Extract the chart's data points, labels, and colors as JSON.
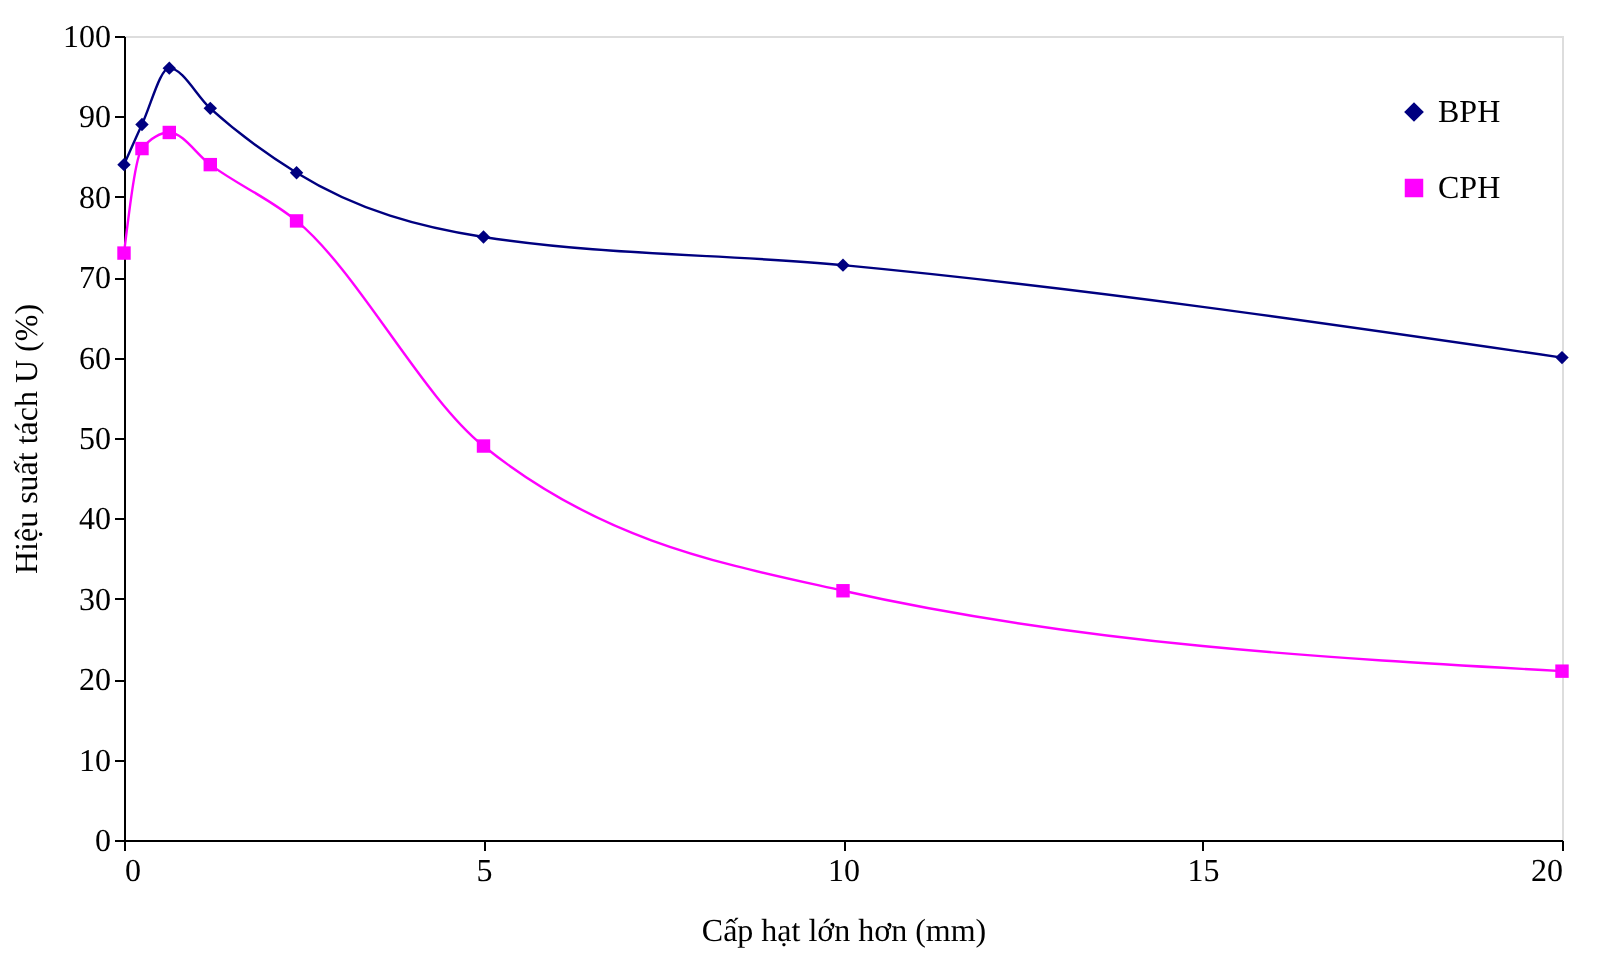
{
  "chart_data": {
    "type": "line",
    "xlabel": "Cấp hạt lớn hơn (mm)",
    "ylabel": "Hiệu suất tách U (%)",
    "x": [
      0,
      0.25,
      0.63,
      1.2,
      2.4,
      5,
      10,
      20
    ],
    "series": [
      {
        "name": "BPH",
        "color": "#000080",
        "marker": "diamond",
        "values": [
          84,
          89,
          96,
          91,
          83,
          75,
          71.5,
          60
        ]
      },
      {
        "name": "CPH",
        "color": "#ff00ff",
        "marker": "square",
        "values": [
          73,
          86,
          88,
          84,
          77,
          49,
          31,
          21
        ]
      }
    ],
    "xlim": [
      0,
      20
    ],
    "xticks": [
      0,
      5,
      10,
      15,
      20
    ],
    "ylim": [
      0,
      100
    ],
    "yticks": [
      0,
      10,
      20,
      30,
      40,
      50,
      60,
      70,
      80,
      90,
      100
    ],
    "grid": false,
    "legend": "top right",
    "line_style": "solid"
  }
}
